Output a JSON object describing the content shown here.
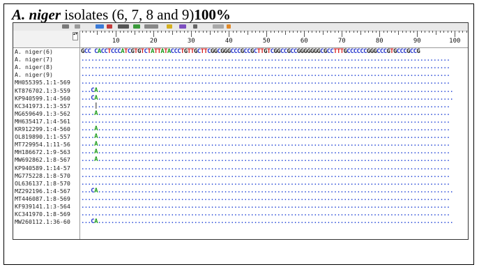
{
  "caption": {
    "species": "A. niger",
    "text": " isolates (6, 7, 8 and 9)",
    "percent": "100%"
  },
  "alignment": {
    "ruler_numbers": [
      "10",
      "20",
      "30",
      "40",
      "50",
      "60",
      "70",
      "80",
      "90",
      "100"
    ],
    "reference_sequence": "GCC CACCTCCCATCGTGTCTATTATACCCTGTTGCTTCGGCGGGCCCGCCGCTTGTCGGCCGCCGGGGGGGCGCCTTTGCCCCCCGGGCCCGTGCCCGCCG",
    "rows": [
      {
        "name": "A. niger(6)",
        "seq": ""
      },
      {
        "name": "A. niger(7)",
        "seq": "..............................................................................................................."
      },
      {
        "name": "A. niger(8)",
        "seq": "..............................................................................................................."
      },
      {
        "name": "A. niger(9)",
        "seq": "..............................................................................................................."
      },
      {
        "name": "MH055395.1:1-569",
        "seq": "..............................................................................................................."
      },
      {
        "name": "KT876702.1:3-559",
        "seq": "...CA..........................................................................................................."
      },
      {
        "name": "KP940599.1:4-560",
        "seq": "...CA..........................................................................................................."
      },
      {
        "name": "KC341973.1:3-557",
        "seq": "....|.........................................................................................................."
      },
      {
        "name": "MG659649.1:3-562",
        "seq": "....A.........................................................................................................."
      },
      {
        "name": "MH635417.1:4-561",
        "seq": "..............................................................................................................."
      },
      {
        "name": "KR912299.1:4-560",
        "seq": "....A.........................................................................................................."
      },
      {
        "name": "OL819890.1:1-557",
        "seq": "....A.........................................................................................................."
      },
      {
        "name": "MT729954.1:11-56",
        "seq": "....A.........................................................................................................."
      },
      {
        "name": "MH186672.1:9-563",
        "seq": "....A.........................................................................................................."
      },
      {
        "name": "MW692862.1:8-567",
        "seq": "....A.........................................................................................................."
      },
      {
        "name": "KP940589.1:14-57",
        "seq": "..............................................................................................................."
      },
      {
        "name": "MG775228.1:8-570",
        "seq": "..............................................................................................................."
      },
      {
        "name": "OL636137.1:8-570",
        "seq": "..............................................................................................................."
      },
      {
        "name": "MZ292196.1:4-567",
        "seq": "...CA..........................................................................................................."
      },
      {
        "name": "MT446087.1:8-569",
        "seq": "..............................................................................................................."
      },
      {
        "name": "KF939141.1:3-564",
        "seq": "..............................................................................................................."
      },
      {
        "name": "KC341970.1:8-569",
        "seq": "..............................................................................................................."
      },
      {
        "name": "MW260112.1:36-60",
        "seq": "...CA..........................................................................................................."
      }
    ]
  }
}
